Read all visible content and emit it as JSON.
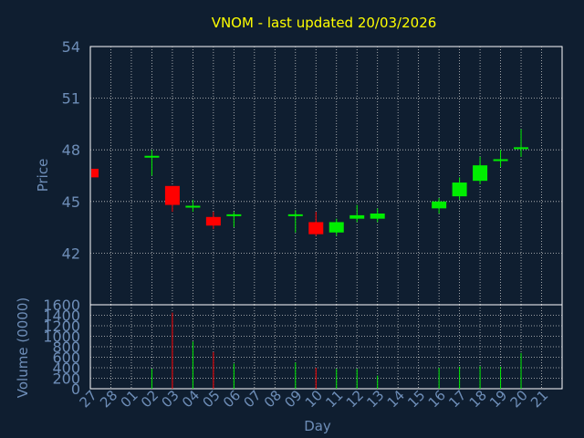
{
  "chart_data": {
    "type": "candlestick",
    "title": "VNOM - last updated 20/03/2026",
    "price_axis": {
      "label": "Price",
      "ylim": [
        39,
        54
      ],
      "ticks": [
        "54",
        "51",
        "48",
        "45",
        "42"
      ],
      "tick_values": [
        54,
        51,
        48,
        45,
        42
      ]
    },
    "volume_axis": {
      "label": "Volume (0000)",
      "ylim": [
        0,
        1600
      ],
      "ticks": [
        "1600",
        "1400",
        "1200",
        "1000",
        "800",
        "600",
        "400",
        "200",
        "0"
      ],
      "tick_values": [
        1600,
        1400,
        1200,
        1000,
        800,
        600,
        400,
        200,
        0
      ]
    },
    "x_axis": {
      "label": "Day",
      "ticks": [
        "27",
        "28",
        "01",
        "02",
        "03",
        "04",
        "05",
        "06",
        "07",
        "08",
        "09",
        "10",
        "11",
        "12",
        "13",
        "14",
        "15",
        "16",
        "17",
        "18",
        "19",
        "20",
        "21"
      ]
    },
    "grid": true,
    "colors": {
      "up": "#00ee00",
      "down": "#ff0000",
      "background": "#0f1e30",
      "grid": "#c8c8c8",
      "title": "#ffff00",
      "axis_text": "#6e8eb8"
    },
    "candles": [
      {
        "slot": 0,
        "open": 46.9,
        "high": 46.9,
        "low": 46.4,
        "close": 46.4,
        "volume": 0
      },
      {
        "slot": 3,
        "open": 47.6,
        "high": 48.0,
        "low": 46.5,
        "close": 47.6,
        "volume": 380
      },
      {
        "slot": 4,
        "open": 45.9,
        "high": 45.9,
        "low": 44.4,
        "close": 44.8,
        "volume": 1450
      },
      {
        "slot": 5,
        "open": 44.7,
        "high": 45.1,
        "low": 44.4,
        "close": 44.7,
        "volume": 900
      },
      {
        "slot": 6,
        "open": 44.1,
        "high": 44.4,
        "low": 43.4,
        "close": 43.6,
        "volume": 700
      },
      {
        "slot": 7,
        "open": 44.1,
        "high": 44.4,
        "low": 43.5,
        "close": 44.2,
        "volume": 480
      },
      {
        "slot": 10,
        "open": 44.2,
        "high": 44.5,
        "low": 43.2,
        "close": 44.2,
        "volume": 500
      },
      {
        "slot": 11,
        "open": 43.8,
        "high": 44.4,
        "low": 43.0,
        "close": 43.1,
        "volume": 400
      },
      {
        "slot": 12,
        "open": 43.2,
        "high": 44.0,
        "low": 43.0,
        "close": 43.8,
        "volume": 380
      },
      {
        "slot": 13,
        "open": 44.0,
        "high": 44.8,
        "low": 43.8,
        "close": 44.2,
        "volume": 380
      },
      {
        "slot": 14,
        "open": 44.0,
        "high": 44.6,
        "low": 43.8,
        "close": 44.3,
        "volume": 250
      },
      {
        "slot": 17,
        "open": 44.6,
        "high": 45.2,
        "low": 44.3,
        "close": 45.0,
        "volume": 400
      },
      {
        "slot": 18,
        "open": 45.3,
        "high": 46.4,
        "low": 45.1,
        "close": 46.1,
        "volume": 420
      },
      {
        "slot": 19,
        "open": 46.2,
        "high": 47.6,
        "low": 46.0,
        "close": 47.1,
        "volume": 430
      },
      {
        "slot": 20,
        "open": 47.3,
        "high": 48.0,
        "low": 47.0,
        "close": 47.4,
        "volume": 420
      },
      {
        "slot": 21,
        "open": 48.0,
        "high": 49.2,
        "low": 47.6,
        "close": 48.1,
        "volume": 680
      }
    ]
  }
}
